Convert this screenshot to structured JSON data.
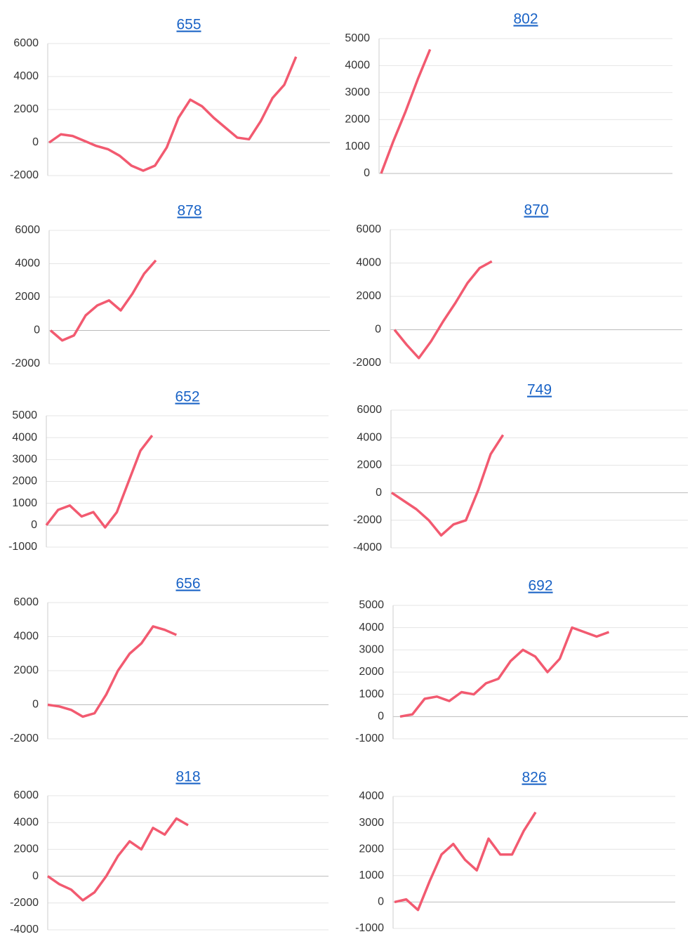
{
  "chart_data": [
    {
      "type": "line",
      "title": "655",
      "color": "#f25a70",
      "values": [
        0,
        500,
        400,
        100,
        -200,
        -400,
        -800,
        -1400,
        -1700,
        -1400,
        -300,
        1500,
        2600,
        2200,
        1500,
        900,
        300,
        200,
        1300,
        2700,
        3500,
        5200
      ],
      "ylim": [
        -2000,
        6000
      ],
      "yticks": [
        -2000,
        0,
        2000,
        4000,
        6000
      ],
      "grid": true
    },
    {
      "type": "line",
      "title": "802",
      "color": "#f25a70",
      "values": [
        0,
        1200,
        2300,
        3500,
        4600
      ],
      "ylim": [
        0,
        5000
      ],
      "yticks": [
        0,
        1000,
        2000,
        3000,
        4000,
        5000
      ],
      "grid": true
    },
    {
      "type": "line",
      "title": "878",
      "color": "#f25a70",
      "values": [
        0,
        -600,
        -300,
        900,
        1500,
        1800,
        1200,
        2200,
        3400,
        4200
      ],
      "ylim": [
        -2000,
        6000
      ],
      "yticks": [
        -2000,
        0,
        2000,
        4000,
        6000
      ],
      "grid": true
    },
    {
      "type": "line",
      "title": "870",
      "color": "#f25a70",
      "values": [
        0,
        -900,
        -1700,
        -700,
        500,
        1600,
        2800,
        3700,
        4100
      ],
      "ylim": [
        -2000,
        6000
      ],
      "yticks": [
        -2000,
        0,
        2000,
        4000,
        6000
      ],
      "grid": true
    },
    {
      "type": "line",
      "title": "652",
      "color": "#f25a70",
      "values": [
        0,
        700,
        900,
        400,
        600,
        -100,
        600,
        2000,
        3400,
        4100
      ],
      "ylim": [
        -1000,
        5000
      ],
      "yticks": [
        -1000,
        0,
        1000,
        2000,
        3000,
        4000,
        5000
      ],
      "grid": true
    },
    {
      "type": "line",
      "title": "749",
      "color": "#f25a70",
      "values": [
        0,
        -600,
        -1200,
        -2000,
        -3100,
        -2300,
        -2000,
        200,
        2800,
        4200
      ],
      "ylim": [
        -4000,
        6000
      ],
      "yticks": [
        -4000,
        -2000,
        0,
        2000,
        4000,
        6000
      ],
      "grid": true
    },
    {
      "type": "line",
      "title": "656",
      "color": "#f25a70",
      "values": [
        0,
        -100,
        -300,
        -700,
        -500,
        600,
        2000,
        3000,
        3600,
        4600,
        4400,
        4100
      ],
      "ylim": [
        -2000,
        6000
      ],
      "yticks": [
        -2000,
        0,
        2000,
        4000,
        6000
      ],
      "grid": true
    },
    {
      "type": "line",
      "title": "692",
      "color": "#f25a70",
      "values": [
        0,
        100,
        800,
        900,
        700,
        1100,
        1000,
        1500,
        1700,
        2500,
        3000,
        2700,
        2000,
        2600,
        4000,
        3800,
        3600,
        3800
      ],
      "ylim": [
        -1000,
        5000
      ],
      "yticks": [
        -1000,
        0,
        1000,
        2000,
        3000,
        4000,
        5000
      ],
      "grid": true
    },
    {
      "type": "line",
      "title": "818",
      "color": "#f25a70",
      "values": [
        0,
        -600,
        -1000,
        -1800,
        -1200,
        0,
        1500,
        2600,
        2000,
        3600,
        3100,
        4300,
        3800
      ],
      "ylim": [
        -4000,
        6000
      ],
      "yticks": [
        -4000,
        -2000,
        0,
        2000,
        4000,
        6000
      ],
      "grid": true
    },
    {
      "type": "line",
      "title": "826",
      "color": "#f25a70",
      "values": [
        0,
        100,
        -300,
        800,
        1800,
        2200,
        1600,
        1200,
        2400,
        1800,
        1800,
        2700,
        3400
      ],
      "ylim": [
        -1000,
        4000
      ],
      "yticks": [
        -1000,
        0,
        1000,
        2000,
        3000,
        4000
      ],
      "grid": true
    }
  ]
}
